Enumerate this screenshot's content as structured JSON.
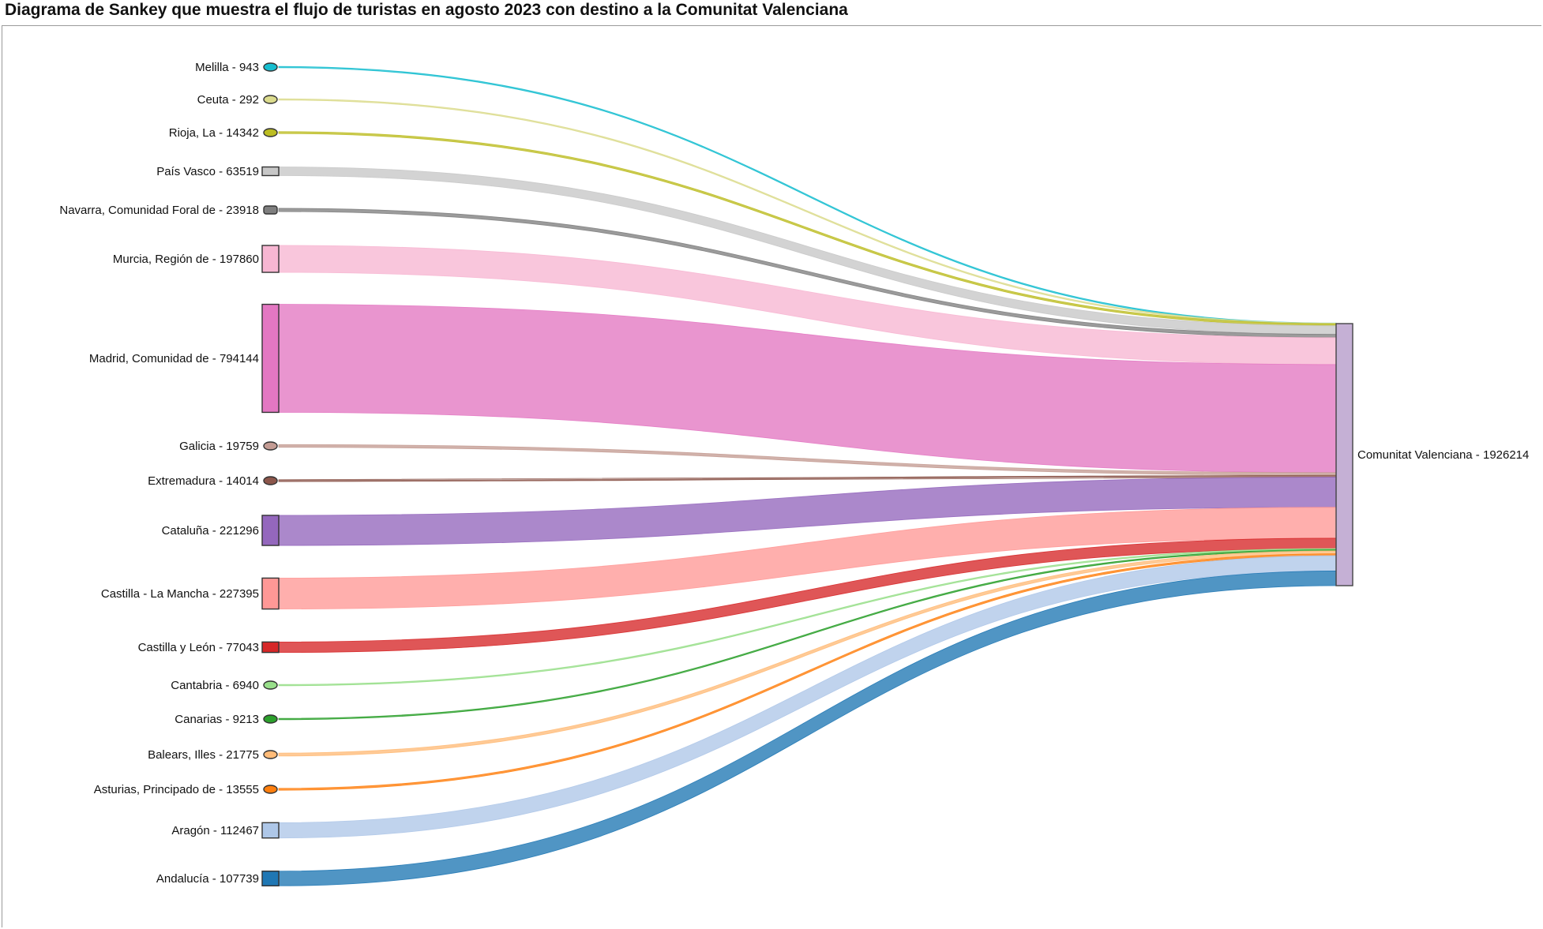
{
  "title": "Diagrama de Sankey que muestra el flujo de turistas en agosto 2023 con destino a la Comunitat Valenciana",
  "chart_data": {
    "type": "sankey",
    "target": {
      "label": "Comunitat Valenciana - 1926214",
      "name": "Comunitat Valenciana",
      "value": 1926214,
      "color": "#c5b0d5"
    },
    "sources": [
      {
        "label": "Melilla - 943",
        "name": "Melilla",
        "value": 943,
        "color": "#17becf"
      },
      {
        "label": "Ceuta - 292",
        "name": "Ceuta",
        "value": 292,
        "color": "#dbdb8d"
      },
      {
        "label": "Rioja, La - 14342",
        "name": "Rioja, La",
        "value": 14342,
        "color": "#bcbd22"
      },
      {
        "label": "País Vasco - 63519",
        "name": "País Vasco",
        "value": 63519,
        "color": "#c7c7c7"
      },
      {
        "label": "Navarra, Comunidad Foral de - 23918",
        "name": "Navarra, Comunidad Foral de",
        "value": 23918,
        "color": "#7f7f7f"
      },
      {
        "label": "Murcia, Región de - 197860",
        "name": "Murcia, Región de",
        "value": 197860,
        "color": "#f7b6d2"
      },
      {
        "label": "Madrid, Comunidad de - 794144",
        "name": "Madrid, Comunidad de",
        "value": 794144,
        "color": "#e377c2"
      },
      {
        "label": "Galicia - 19759",
        "name": "Galicia",
        "value": 19759,
        "color": "#c49c94"
      },
      {
        "label": "Extremadura - 14014",
        "name": "Extremadura",
        "value": 14014,
        "color": "#8c564b"
      },
      {
        "label": "Cataluña - 221296",
        "name": "Cataluña",
        "value": 221296,
        "color": "#9467bd"
      },
      {
        "label": "Castilla - La Mancha - 227395",
        "name": "Castilla - La Mancha",
        "value": 227395,
        "color": "#ff9896"
      },
      {
        "label": "Castilla y León - 77043",
        "name": "Castilla y León",
        "value": 77043,
        "color": "#d62728"
      },
      {
        "label": "Cantabria - 6940",
        "name": "Cantabria",
        "value": 6940,
        "color": "#98df8a"
      },
      {
        "label": "Canarias - 9213",
        "name": "Canarias",
        "value": 9213,
        "color": "#2ca02c"
      },
      {
        "label": "Balears, Illes - 21775",
        "name": "Balears, Illes",
        "value": 21775,
        "color": "#ffbb78"
      },
      {
        "label": "Asturias, Principado de - 13555",
        "name": "Asturias, Principado de",
        "value": 13555,
        "color": "#ff7f0e"
      },
      {
        "label": "Aragón - 112467",
        "name": "Aragón",
        "value": 112467,
        "color": "#aec7e8"
      },
      {
        "label": "Andalucía - 107739",
        "name": "Andalucía",
        "value": 107739,
        "color": "#1f77b4"
      }
    ]
  }
}
